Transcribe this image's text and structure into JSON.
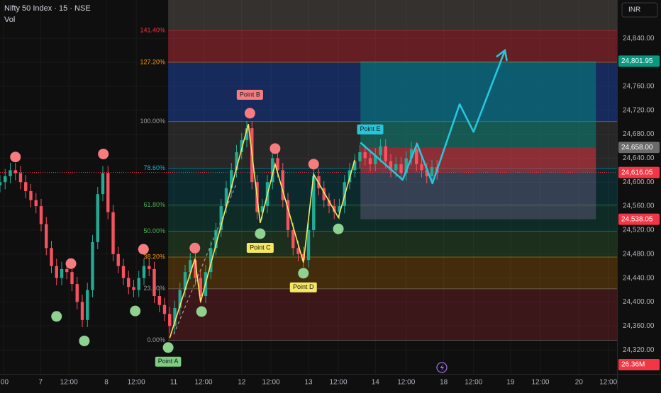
{
  "chart_data": {
    "type": "candlestick",
    "title": "Nifty 50 Index · 15 · NSE",
    "volume_label": "Vol",
    "currency": "INR",
    "xlim": [
      0,
      120
    ],
    "ylim": [
      24280,
      24904
    ],
    "xticks": [
      {
        "value": 0.7,
        "label": ":00"
      },
      {
        "value": 7.9,
        "label": "7"
      },
      {
        "value": 13.4,
        "label": "12:00"
      },
      {
        "value": 20.7,
        "label": "8"
      },
      {
        "value": 26.5,
        "label": "12:00"
      },
      {
        "value": 33.8,
        "label": "11"
      },
      {
        "value": 39.6,
        "label": "12:00"
      },
      {
        "value": 47,
        "label": "12"
      },
      {
        "value": 52.7,
        "label": "12:00"
      },
      {
        "value": 60,
        "label": "13"
      },
      {
        "value": 65.8,
        "label": "12:00"
      },
      {
        "value": 73,
        "label": "14"
      },
      {
        "value": 79,
        "label": "12:00"
      },
      {
        "value": 86.3,
        "label": "18"
      },
      {
        "value": 92.1,
        "label": "12:00"
      },
      {
        "value": 99.3,
        "label": "19"
      },
      {
        "value": 105.1,
        "label": "12:00"
      },
      {
        "value": 112.6,
        "label": "20"
      },
      {
        "value": 118.3,
        "label": "12:00"
      }
    ],
    "yticks": [
      {
        "value": 24320,
        "label": "24,320.00"
      },
      {
        "value": 24360,
        "label": "24,360.00"
      },
      {
        "value": 24400,
        "label": "24,400.00"
      },
      {
        "value": 24440,
        "label": "24,440.00"
      },
      {
        "value": 24480,
        "label": "24,480.00"
      },
      {
        "value": 24520,
        "label": "24,520.00"
      },
      {
        "value": 24560,
        "label": "24,560.00"
      },
      {
        "value": 24600,
        "label": "24,600.00"
      },
      {
        "value": 24640,
        "label": "24,640.00"
      },
      {
        "value": 24680,
        "label": "24,680.00"
      },
      {
        "value": 24720,
        "label": "24,720.00"
      },
      {
        "value": 24760,
        "label": "24,760.00"
      },
      {
        "value": 24800,
        "label": "24,800.00"
      },
      {
        "value": 24840,
        "label": "24,840.00"
      }
    ],
    "grid": true,
    "up_color": "#22ab94",
    "down_color": "#f7525f",
    "open": [
      24595,
      24600,
      24610,
      24620,
      24615,
      24600,
      24585,
      24570,
      24560,
      24530,
      24490,
      24460,
      24440,
      24455,
      24450,
      24430,
      24400,
      24370,
      24420,
      24500,
      24580,
      24615,
      24550,
      24480,
      24460,
      24440,
      24425,
      24420,
      24440,
      24460,
      24455,
      24410,
      24395,
      24380,
      24360,
      24390,
      24420,
      24450,
      24470,
      24440,
      24410,
      24450,
      24490,
      24520,
      24560,
      24590,
      24620,
      24650,
      24670,
      24690,
      24600,
      24550,
      24560,
      24600,
      24640,
      24620,
      24570,
      24520,
      24490,
      24480,
      24470,
      24520,
      24610,
      24590,
      24570,
      24560,
      24550,
      24560,
      24600,
      24620,
      24635,
      24650,
      24640,
      24630,
      24645,
      24660,
      24635,
      24620,
      24630,
      24615,
      24640,
      24655,
      24630,
      24620,
      24610,
      24625
    ],
    "high": [
      24612,
      24622,
      24632,
      24632,
      24627,
      24612,
      24597,
      24582,
      24572,
      24542,
      24502,
      24472,
      24467,
      24467,
      24462,
      24442,
      24412,
      24432,
      24512,
      24592,
      24627,
      24627,
      24562,
      24492,
      24472,
      24452,
      24437,
      24452,
      24472,
      24472,
      24467,
      24422,
      24407,
      24392,
      24402,
      24432,
      24462,
      24482,
      24482,
      24452,
      24462,
      24502,
      24532,
      24572,
      24602,
      24632,
      24662,
      24682,
      24702,
      24702,
      24612,
      24572,
      24612,
      24652,
      24652,
      24632,
      24582,
      24532,
      24502,
      24492,
      24532,
      24622,
      24622,
      24602,
      24582,
      24572,
      24572,
      24612,
      24632,
      24647,
      24662,
      24662,
      24652,
      24657,
      24672,
      24672,
      24647,
      24642,
      24642,
      24652,
      24667,
      24667,
      24642,
      24632,
      24637,
      24637
    ],
    "low": [
      24583,
      24588,
      24598,
      24603,
      24588,
      24573,
      24558,
      24548,
      24518,
      24478,
      24448,
      24428,
      24428,
      24438,
      24418,
      24388,
      24358,
      24358,
      24408,
      24488,
      24568,
      24538,
      24468,
      24448,
      24428,
      24413,
      24408,
      24408,
      24428,
      24443,
      24398,
      24383,
      24368,
      24348,
      24348,
      24378,
      24408,
      24438,
      24428,
      24398,
      24398,
      24438,
      24478,
      24508,
      24548,
      24578,
      24608,
      24638,
      24658,
      24588,
      24538,
      24538,
      24548,
      24588,
      24608,
      24558,
      24508,
      24478,
      24468,
      24458,
      24458,
      24508,
      24578,
      24558,
      24548,
      24538,
      24538,
      24548,
      24588,
      24608,
      24623,
      24628,
      24618,
      24618,
      24633,
      24623,
      24608,
      24608,
      24603,
      24603,
      24628,
      24618,
      24608,
      24598,
      24598,
      24604
    ],
    "close": [
      24600,
      24610,
      24620,
      24615,
      24600,
      24585,
      24570,
      24560,
      24530,
      24490,
      24460,
      24440,
      24455,
      24450,
      24430,
      24400,
      24370,
      24420,
      24500,
      24580,
      24615,
      24550,
      24480,
      24460,
      24440,
      24425,
      24420,
      24440,
      24460,
      24455,
      24410,
      24395,
      24380,
      24360,
      24390,
      24420,
      24450,
      24470,
      24440,
      24410,
      24450,
      24490,
      24520,
      24560,
      24590,
      24620,
      24650,
      24670,
      24690,
      24600,
      24550,
      24560,
      24600,
      24640,
      24620,
      24570,
      24520,
      24490,
      24480,
      24470,
      24520,
      24610,
      24590,
      24570,
      24560,
      24550,
      24560,
      24600,
      24620,
      24635,
      24650,
      24640,
      24630,
      24645,
      24660,
      24635,
      24620,
      24630,
      24615,
      24640,
      24655,
      24630,
      24620,
      24610,
      24625,
      24616
    ],
    "fibonacci": {
      "start_x": 32.7,
      "top_fill": "rgba(150,140,130,0.28)",
      "levels": [
        {
          "label": "0.00%",
          "price": 24336,
          "color": "#9e9e9e",
          "fill": "rgba(242,54,69,0.2)"
        },
        {
          "label": "23.60%",
          "price": 24422,
          "color": "#9e9e9e",
          "fill": "rgba(255,152,0,0.22)"
        },
        {
          "label": "38.20%",
          "price": 24475,
          "color": "#ff9800",
          "fill": "rgba(76,175,80,0.2)"
        },
        {
          "label": "50.00%",
          "price": 24518,
          "color": "#4caf50",
          "fill": "rgba(8,153,129,0.2)"
        },
        {
          "label": "61.80%",
          "price": 24562,
          "color": "#4caf50",
          "fill": "rgba(0,188,212,0.16)"
        },
        {
          "label": "78.60%",
          "price": 24623,
          "color": "#00bcd4",
          "fill": "rgba(128,128,128,0.22)"
        },
        {
          "label": "100.00%",
          "price": 24701,
          "color": "#9e9e9e",
          "fill": "rgba(41,98,255,0.32)"
        },
        {
          "label": "127.20%",
          "price": 24800,
          "color": "#ff9800",
          "fill": "rgba(242,54,69,0.38)"
        },
        {
          "label": "141.40%",
          "price": 24853,
          "color": "#f23645",
          "fill": null
        }
      ]
    },
    "position": {
      "start_x": 70.1,
      "end_x": 115.9,
      "levels": [
        {
          "value": 24801.95,
          "label": "24,801.95",
          "tag_color": "#089981"
        },
        {
          "value": 24658,
          "label": "24,658.00",
          "tag_color": "#6b6b6b"
        },
        {
          "value": 24616.05,
          "label": "24,616.05",
          "tag_color": "#f23645"
        },
        {
          "value": 24538.05,
          "label": "24,538.05",
          "tag_color": "#f23645"
        }
      ],
      "fills": [
        "rgba(0,150,136,0.45)",
        "rgba(242,54,69,0.5)",
        "rgba(150,120,170,0.3)"
      ]
    },
    "price_line": {
      "value": 24616.05,
      "color": "#f23645"
    },
    "pattern_line": {
      "color": "#f5e663",
      "x": [
        33,
        37.9,
        39,
        48.3,
        50.6,
        53.5,
        59,
        61,
        65.8,
        69
      ],
      "prices": [
        24340,
        24472,
        24400,
        24697,
        24532,
        24630,
        24466,
        24613,
        24541,
        24637
      ]
    },
    "pattern_dash": {
      "color": "#9e9e9e",
      "x": [
        33.8,
        46
      ],
      "prices": [
        24346,
        24598
      ]
    },
    "projection": {
      "color": "#26c6da",
      "x": [
        70.1,
        78.3,
        81.1,
        84.1,
        89.4,
        92.1,
        98.2
      ],
      "prices": [
        24666,
        24604,
        24664,
        24598,
        24730,
        24684,
        24820
      ]
    },
    "markers": [
      {
        "x": 3,
        "price": 24642,
        "color": "#f77c80"
      },
      {
        "x": 13.8,
        "price": 24464,
        "color": "#f77c80"
      },
      {
        "x": 20.1,
        "price": 24647,
        "color": "#f77c80"
      },
      {
        "x": 27.9,
        "price": 24488,
        "color": "#f77c80"
      },
      {
        "x": 37.9,
        "price": 24490,
        "color": "#f77c80"
      },
      {
        "x": 48.6,
        "price": 24715,
        "color": "#f77c80",
        "label": "Point B",
        "label_color": "#f77c80",
        "label_side": "above"
      },
      {
        "x": 53.5,
        "price": 24656,
        "color": "#f77c80"
      },
      {
        "x": 61,
        "price": 24630,
        "color": "#f77c80"
      },
      {
        "x": 11,
        "price": 24376,
        "color": "#8fd18f"
      },
      {
        "x": 16.4,
        "price": 24335,
        "color": "#8fd18f"
      },
      {
        "x": 26.3,
        "price": 24385,
        "color": "#8fd18f"
      },
      {
        "x": 32.7,
        "price": 24324,
        "color": "#8fd18f",
        "label": "Point A",
        "label_color": "#7dce82",
        "label_side": "below"
      },
      {
        "x": 39.2,
        "price": 24384,
        "color": "#8fd18f"
      },
      {
        "x": 50.6,
        "price": 24514,
        "color": "#8fd18f",
        "label": "Point C",
        "label_color": "#f5e663",
        "label_side": "below"
      },
      {
        "x": 59,
        "price": 24448,
        "color": "#8fd18f",
        "label": "Point D",
        "label_color": "#f5e663",
        "label_side": "below"
      },
      {
        "x": 65.8,
        "price": 24522,
        "color": "#8fd18f"
      }
    ],
    "annotations": [
      {
        "label": "Point E",
        "x": 72,
        "price": 24688,
        "color": "#26c6da"
      }
    ],
    "volume_tag": {
      "value": 26360000,
      "label": "26.36M",
      "color": "#f23645"
    }
  }
}
